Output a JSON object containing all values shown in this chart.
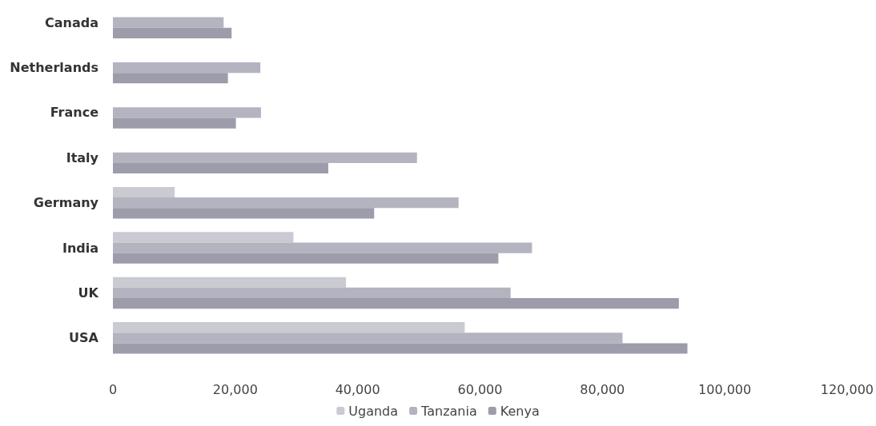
{
  "chart_data": {
    "type": "bar",
    "orientation": "horizontal",
    "categories": [
      "Canada",
      "Netherlands",
      "France",
      "Italy",
      "Germany",
      "India",
      "UK",
      "USA"
    ],
    "series": [
      {
        "name": "Uganda",
        "color": "#cacad2",
        "values": [
          0,
          0,
          0,
          0,
          10100,
          29500,
          38100,
          57500
        ]
      },
      {
        "name": "Tanzania",
        "color": "#b4b4c0",
        "values": [
          18100,
          24100,
          24200,
          49700,
          56500,
          68500,
          65000,
          83300
        ]
      },
      {
        "name": "Kenya",
        "color": "#9c9caa",
        "values": [
          19400,
          18800,
          20100,
          35200,
          42700,
          63000,
          92500,
          93900
        ]
      }
    ],
    "xlim": [
      0,
      120000
    ],
    "xticks": [
      {
        "value": 0,
        "label": "0"
      },
      {
        "value": 20000,
        "label": "20,000"
      },
      {
        "value": 40000,
        "label": "40,000"
      },
      {
        "value": 60000,
        "label": "60,000"
      },
      {
        "value": 80000,
        "label": "80,000"
      },
      {
        "value": 100000,
        "label": "100,000"
      },
      {
        "value": 120000,
        "label": "120,000"
      }
    ],
    "grid": false,
    "legend": "bottom"
  }
}
